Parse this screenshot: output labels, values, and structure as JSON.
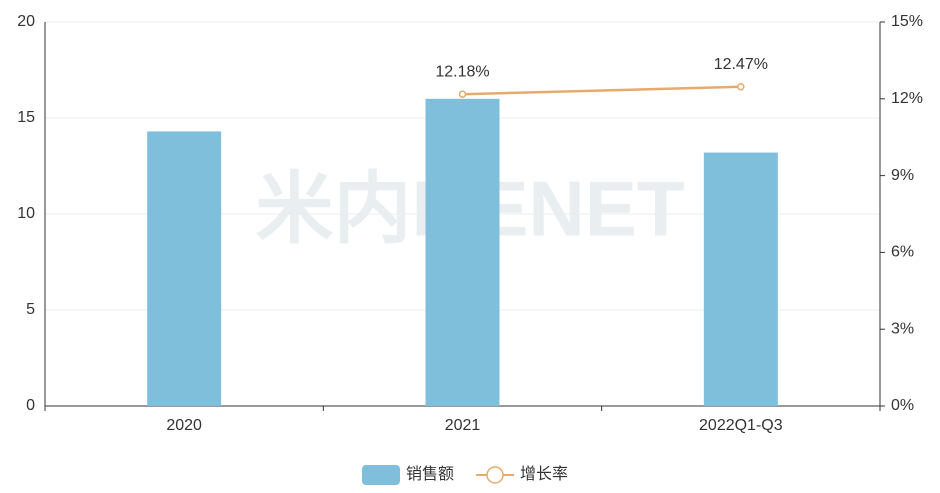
{
  "chart_data": {
    "type": "bar",
    "categories": [
      "2020",
      "2021",
      "2022Q1-Q3"
    ],
    "series": [
      {
        "name": "销售额",
        "type": "bar",
        "color": "#7fbfdb",
        "values": [
          14.3,
          16.0,
          13.2
        ]
      },
      {
        "name": "增长率",
        "type": "line",
        "color": "#e8a96c",
        "axis": "y2",
        "values": [
          null,
          12.18,
          12.47
        ],
        "value_labels": [
          null,
          "12.18%",
          "12.47%"
        ]
      }
    ],
    "ylim": [
      0,
      20
    ],
    "yticks": [
      0,
      5,
      10,
      15,
      20
    ],
    "y2lim": [
      0,
      15
    ],
    "y2ticks": [
      {
        "value": 0,
        "label": "0%"
      },
      {
        "value": 3,
        "label": "3%"
      },
      {
        "value": 6,
        "label": "6%"
      },
      {
        "value": 9,
        "label": "9%"
      },
      {
        "value": 12,
        "label": "12%"
      },
      {
        "value": 15,
        "label": "15%"
      }
    ],
    "grid": true,
    "legend": "bottom",
    "watermark": "米内MENET"
  }
}
